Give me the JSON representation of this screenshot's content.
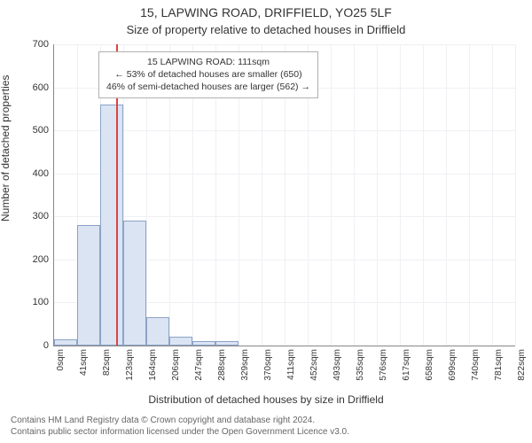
{
  "title_line1": "15, LAPWING ROAD, DRIFFIELD, YO25 5LF",
  "title_line2": "Size of property relative to detached houses in Driffield",
  "ylabel": "Number of detached properties",
  "xlabel": "Distribution of detached houses by size in Driffield",
  "footer_line1": "Contains HM Land Registry data © Crown copyright and database right 2024.",
  "footer_line2": "Contains public sector information licensed under the Open Government Licence v3.0.",
  "chart": {
    "type": "histogram",
    "ylim": [
      0,
      700
    ],
    "ytick_step": 100,
    "yticks": [
      0,
      100,
      200,
      300,
      400,
      500,
      600,
      700
    ],
    "xtick_labels": [
      "0sqm",
      "41sqm",
      "82sqm",
      "123sqm",
      "164sqm",
      "206sqm",
      "247sqm",
      "288sqm",
      "329sqm",
      "370sqm",
      "411sqm",
      "452sqm",
      "493sqm",
      "535sqm",
      "576sqm",
      "617sqm",
      "658sqm",
      "699sqm",
      "740sqm",
      "781sqm",
      "822sqm"
    ],
    "bar_values": [
      15,
      280,
      560,
      290,
      66,
      20,
      10,
      10,
      0,
      0,
      0,
      0,
      0,
      0,
      0,
      0,
      0,
      0,
      0,
      0
    ],
    "bar_fill": "#dbe4f3",
    "bar_stroke": "#8ba3c7",
    "grid_color": "#eef0f4",
    "axis_color": "#888888",
    "background_color": "#ffffff",
    "reference_line": {
      "value_sqm": 111,
      "x_max_sqm": 822,
      "color": "#d44"
    },
    "annotation": {
      "line1": "15 LAPWING ROAD: 111sqm",
      "line2": "← 53% of detached houses are smaller (650)",
      "line3": "46% of semi-detached houses are larger (562) →"
    },
    "title_fontsize": 14,
    "subtitle_fontsize": 13,
    "label_fontsize": 12,
    "tick_fontsize": 11
  }
}
